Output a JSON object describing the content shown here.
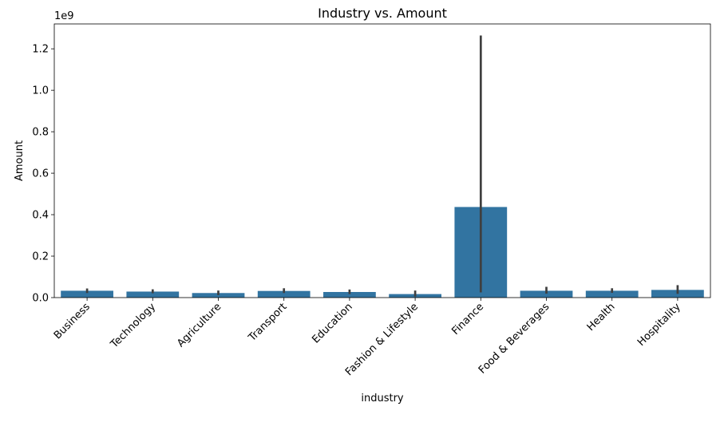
{
  "chart_data": {
    "type": "bar",
    "title": "Industry vs. Amount",
    "xlabel": "industry",
    "ylabel": "Amount",
    "y_offset_text": "1e9",
    "y_scale_factor": 1000000000,
    "ylim": [
      0,
      1.32
    ],
    "yticks": [
      0.0,
      0.2,
      0.4,
      0.6,
      0.8,
      1.0,
      1.2
    ],
    "ytick_labels": [
      "0.0",
      "0.2",
      "0.4",
      "0.6",
      "0.8",
      "1.0",
      "1.2"
    ],
    "categories": [
      "Business",
      "Technology",
      "Agriculture",
      "Transport",
      "Education",
      "Fashion & Lifestyle",
      "Finance",
      "Food & Beverages",
      "Health",
      "Hospitality"
    ],
    "values": [
      0.033,
      0.029,
      0.022,
      0.032,
      0.027,
      0.017,
      0.437,
      0.033,
      0.033,
      0.037
    ],
    "error_low": [
      0.022,
      0.021,
      0.012,
      0.022,
      0.017,
      0.005,
      0.025,
      0.019,
      0.023,
      0.018
    ],
    "error_high": [
      0.044,
      0.04,
      0.034,
      0.045,
      0.039,
      0.034,
      1.264,
      0.052,
      0.045,
      0.06
    ],
    "bar_color": "#3274a1",
    "error_color": "#3f3f3f",
    "grid": false,
    "legend": "none"
  }
}
